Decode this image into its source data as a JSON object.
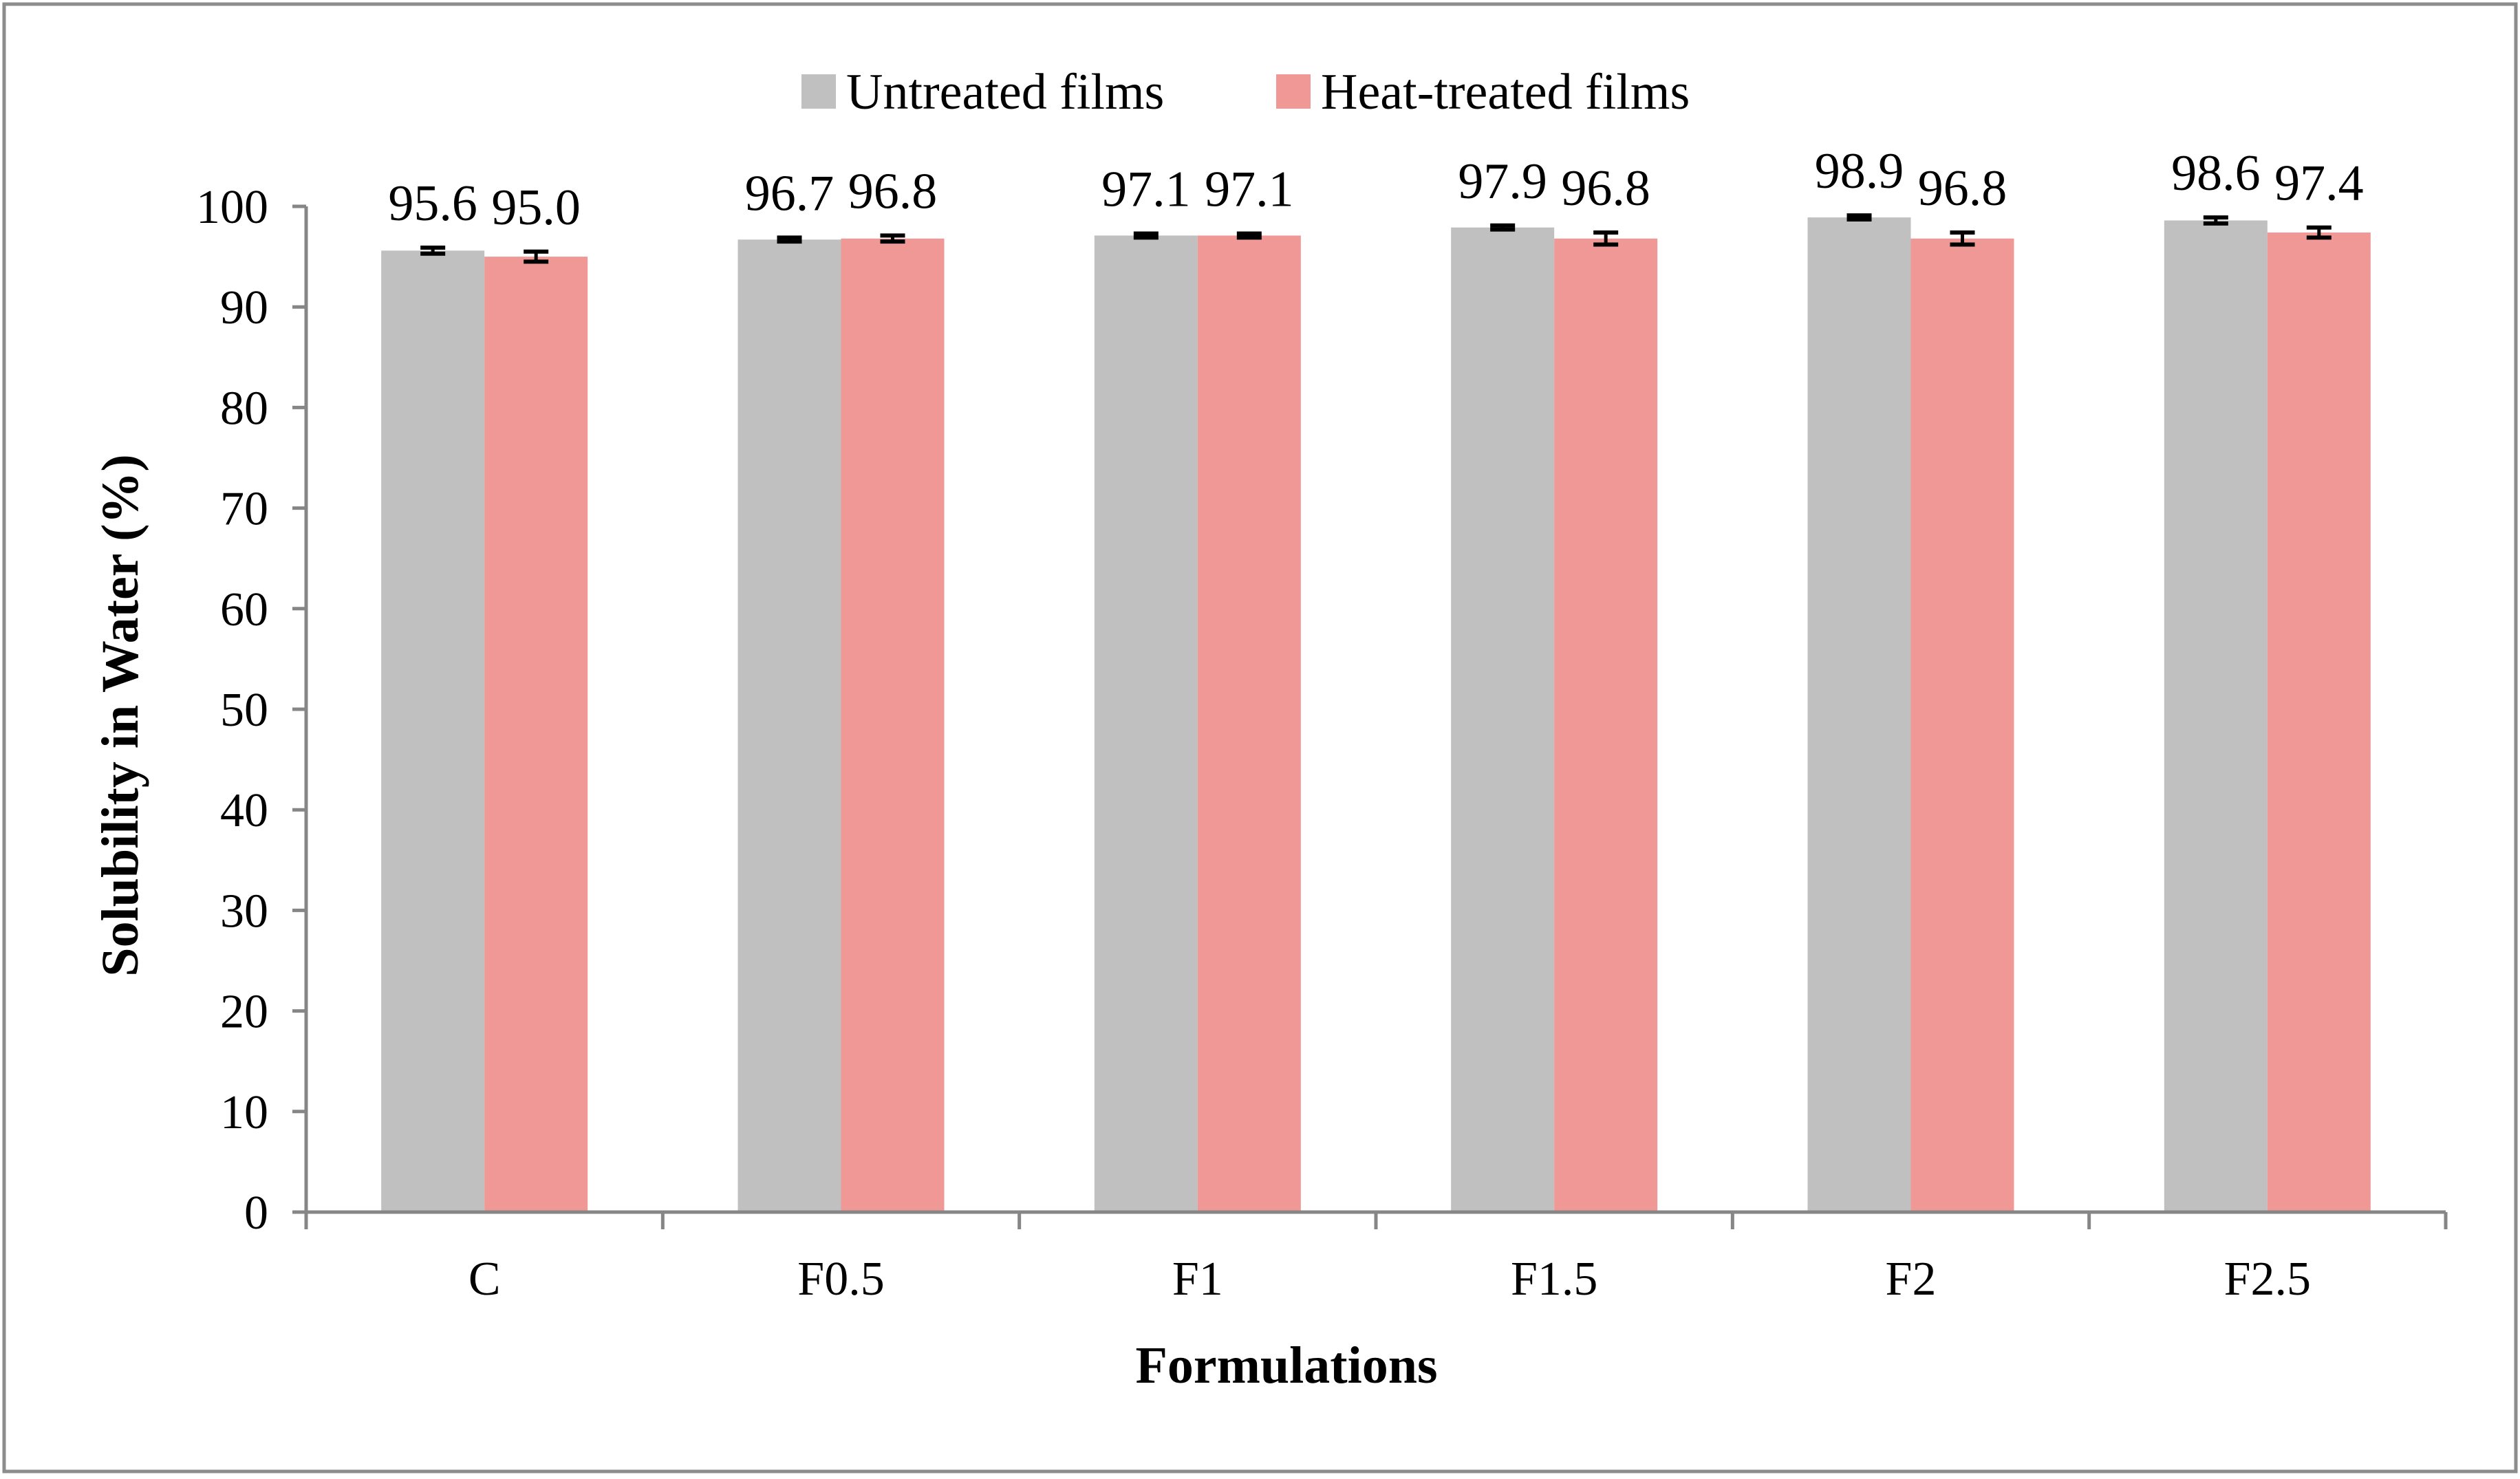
{
  "chart_data": {
    "type": "bar",
    "title": "",
    "xlabel": "Formulations",
    "ylabel": "Solubility in Water (%)",
    "ylim": [
      0,
      100
    ],
    "yticks": [
      0,
      10,
      20,
      30,
      40,
      50,
      60,
      70,
      80,
      90,
      100
    ],
    "grid": false,
    "legend_position": "top-center",
    "categories": [
      "C",
      "F0.5",
      "F1",
      "F1.5",
      "F2",
      "F2.5"
    ],
    "series": [
      {
        "name": "Untreated films",
        "color": "#c0c0c0",
        "values": [
          95.6,
          96.7,
          97.1,
          97.9,
          98.9,
          98.6
        ],
        "errors": [
          0.3,
          0.2,
          0.2,
          0.2,
          0.2,
          0.3
        ],
        "labels": [
          "95.6",
          "96.7",
          "97.1",
          "97.9",
          "98.9",
          "98.6"
        ]
      },
      {
        "name": "Heat-treated films",
        "color": "#ef9895",
        "values": [
          95.0,
          96.8,
          97.1,
          96.8,
          96.8,
          97.4
        ],
        "errors": [
          0.5,
          0.3,
          0.2,
          0.6,
          0.6,
          0.5
        ],
        "labels": [
          "95.0",
          "96.8",
          "97.1",
          "96.8",
          "96.8",
          "97.4"
        ]
      }
    ]
  }
}
